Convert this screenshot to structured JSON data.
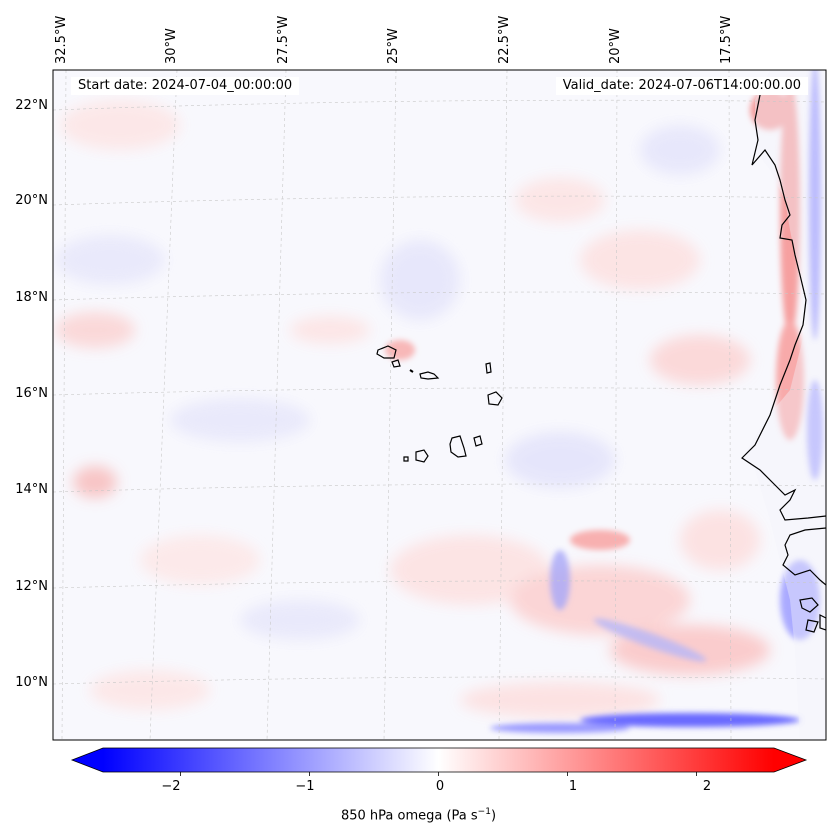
{
  "map": {
    "start_date": "Start date: 2024-07-04_00:00:00",
    "valid_date": "Valid_date: 2024-07-06T14:00:00.00",
    "lon_labels": [
      "32.5°W",
      "30°W",
      "27.5°W",
      "25°W",
      "22.5°W",
      "20°W",
      "17.5°W"
    ],
    "lat_labels": [
      "22°N",
      "20°N",
      "18°N",
      "16°N",
      "14°N",
      "12°N",
      "10°N"
    ],
    "region": "Cape Verde Islands and West African coast"
  },
  "colorbar": {
    "label_main": "850 hPa omega (Pa s",
    "label_unit_exp": "−1",
    "label_close": ")",
    "ticks": [
      "−2",
      "−1",
      "0",
      "1",
      "2"
    ],
    "min": -2.6,
    "max": 2.6,
    "cmap": "bwr"
  },
  "colors": {
    "negative": "#0000ff",
    "neutral": "#ffffff",
    "positive": "#ff0000",
    "coast": "#000000"
  }
}
